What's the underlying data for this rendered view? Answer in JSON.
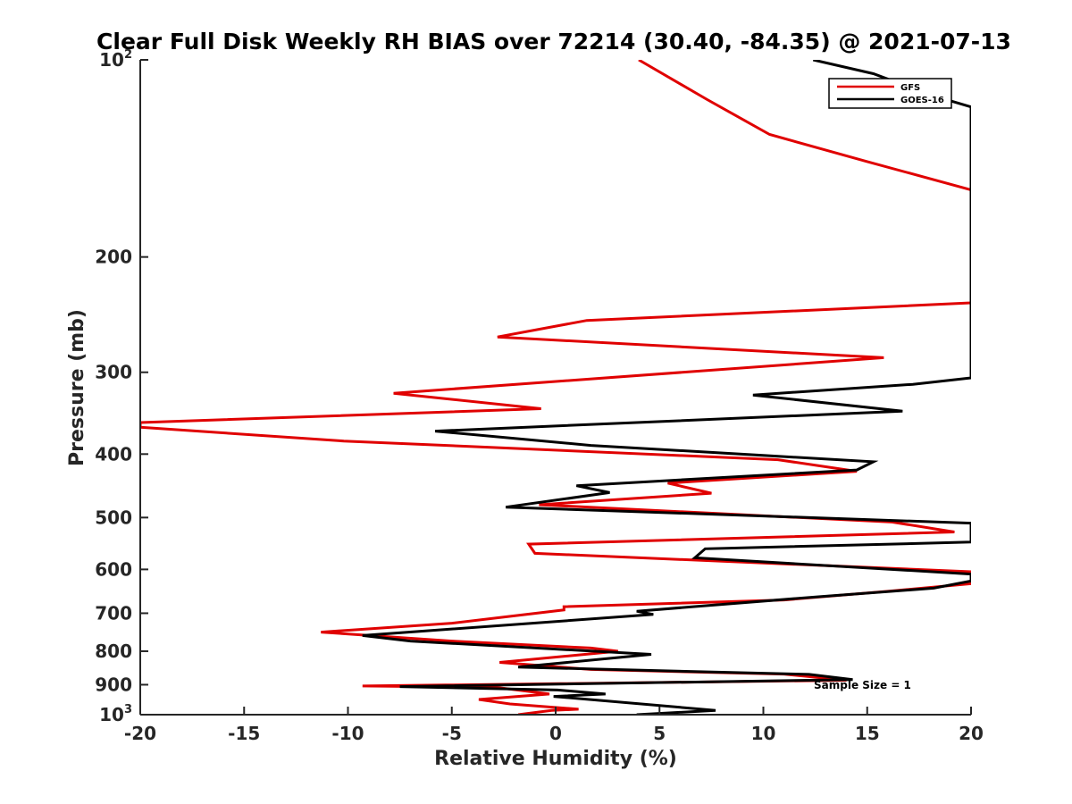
{
  "chart_data": {
    "type": "line",
    "title": "Clear Full Disk Weekly RH BIAS over 72214 (30.40, -84.35) @ 2021-07-13",
    "xlabel": "Relative Humidity (%)",
    "ylabel": "Pressure (mb)",
    "xlim": [
      -20,
      20
    ],
    "ylim": [
      100,
      1000
    ],
    "yscale": "log",
    "y_reversed": true,
    "grid": false,
    "legend_position": "top-right",
    "x_ticks": [
      -20,
      -15,
      -10,
      -5,
      0,
      5,
      10,
      15,
      20
    ],
    "x_tick_labels": [
      "-20",
      "-15",
      "-10",
      "-5",
      "0",
      "5",
      "10",
      "15",
      "20"
    ],
    "y_ticks": [
      {
        "value": 100,
        "label": "10",
        "sup": "2"
      },
      {
        "value": 200,
        "label": "200",
        "sup": ""
      },
      {
        "value": 300,
        "label": "300",
        "sup": ""
      },
      {
        "value": 400,
        "label": "400",
        "sup": ""
      },
      {
        "value": 500,
        "label": "500",
        "sup": ""
      },
      {
        "value": 600,
        "label": "600",
        "sup": ""
      },
      {
        "value": 700,
        "label": "700",
        "sup": ""
      },
      {
        "value": 800,
        "label": "800",
        "sup": ""
      },
      {
        "value": 900,
        "label": "900",
        "sup": ""
      },
      {
        "value": 1000,
        "label": "10",
        "sup": "3"
      }
    ],
    "series": [
      {
        "name": "GFS",
        "color": "#e00000",
        "points": [
          [
            4,
            100
          ],
          [
            7.3,
            115
          ],
          [
            10.3,
            130
          ],
          [
            15,
            143
          ],
          [
            20,
            158
          ],
          [
            20,
            235
          ],
          [
            1.5,
            250
          ],
          [
            -2.8,
            265
          ],
          [
            15.8,
            285
          ],
          [
            -7.8,
            323
          ],
          [
            -0.7,
            341
          ],
          [
            -20,
            358
          ],
          [
            -20,
            364
          ],
          [
            -10.2,
            382
          ],
          [
            10.7,
            408
          ],
          [
            14.5,
            425
          ],
          [
            5.4,
            443
          ],
          [
            7.5,
            459
          ],
          [
            -0.8,
            478
          ],
          [
            16.2,
            508
          ],
          [
            19.2,
            526
          ],
          [
            -1.3,
            549
          ],
          [
            -1,
            567
          ],
          [
            20,
            605
          ],
          [
            20,
            631
          ],
          [
            16,
            648
          ],
          [
            11,
            668
          ],
          [
            0.4,
            684
          ],
          [
            0.4,
            692
          ],
          [
            -5,
            725
          ],
          [
            -11.3,
            748
          ],
          [
            -5,
            772
          ],
          [
            1.7,
            791
          ],
          [
            3,
            800
          ],
          [
            -2.7,
            832
          ],
          [
            1.7,
            853
          ],
          [
            11,
            867
          ],
          [
            14,
            886
          ],
          [
            -9.3,
            904
          ],
          [
            -2.8,
            909
          ],
          [
            -0.3,
            930
          ],
          [
            -3.7,
            948
          ],
          [
            -2.2,
            963
          ],
          [
            1.1,
            981
          ],
          [
            -0.2,
            985
          ],
          [
            -1.8,
            1000
          ]
        ]
      },
      {
        "name": "GOES-16",
        "color": "#000000",
        "points": [
          [
            12.4,
            100
          ],
          [
            15.3,
            105
          ],
          [
            18,
            113
          ],
          [
            20,
            118
          ],
          [
            20,
            306
          ],
          [
            17.2,
            313
          ],
          [
            9.5,
            325
          ],
          [
            16.7,
            344
          ],
          [
            -5.8,
            369
          ],
          [
            1.7,
            388
          ],
          [
            15.3,
            411
          ],
          [
            14.5,
            423
          ],
          [
            1,
            447
          ],
          [
            2.6,
            458
          ],
          [
            -2.4,
            482
          ],
          [
            20,
            510
          ],
          [
            20,
            545
          ],
          [
            7.2,
            558
          ],
          [
            6.7,
            576
          ],
          [
            20,
            610
          ],
          [
            20,
            625
          ],
          [
            18.2,
            641
          ],
          [
            12.8,
            660
          ],
          [
            3.9,
            695
          ],
          [
            4.7,
            703
          ],
          [
            -9.3,
            757
          ],
          [
            -7,
            772
          ],
          [
            4.6,
            809
          ],
          [
            -1.8,
            846
          ],
          [
            12.2,
            868
          ],
          [
            14.3,
            884
          ],
          [
            -7.5,
            906
          ],
          [
            0.1,
            917
          ],
          [
            2.4,
            930
          ],
          [
            -0.1,
            938
          ],
          [
            7.7,
            985
          ],
          [
            3.9,
            1000
          ]
        ]
      }
    ],
    "annotations": [
      "Sample Size = 1"
    ]
  }
}
